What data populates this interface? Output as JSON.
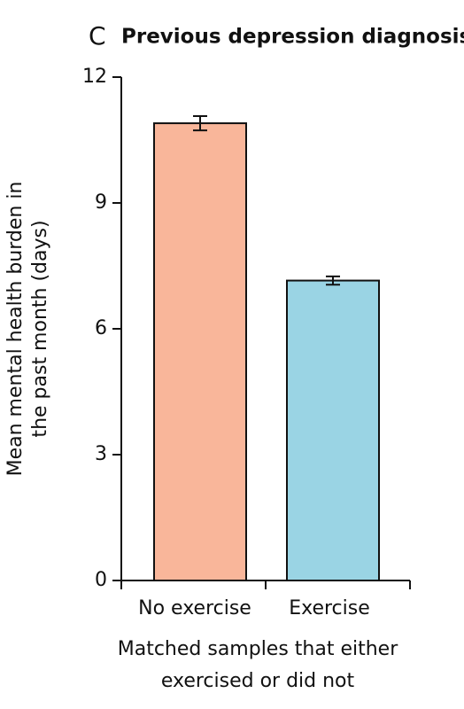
{
  "chart_data": {
    "type": "bar",
    "panel": "C",
    "title": "Previous depression diagnosis",
    "ylabel": [
      "Mean mental health burden in",
      "the past month (days)"
    ],
    "xlabel": [
      "Matched samples that either",
      "exercised or did not"
    ],
    "categories": [
      "No exercise",
      "Exercise"
    ],
    "values": [
      10.9,
      7.15
    ],
    "errors": [
      0.17,
      0.1
    ],
    "colors": [
      "#f9b69a",
      "#9ad4e4"
    ],
    "ylim": [
      0,
      12
    ],
    "yticks": [
      0,
      3,
      6,
      9,
      12
    ]
  }
}
